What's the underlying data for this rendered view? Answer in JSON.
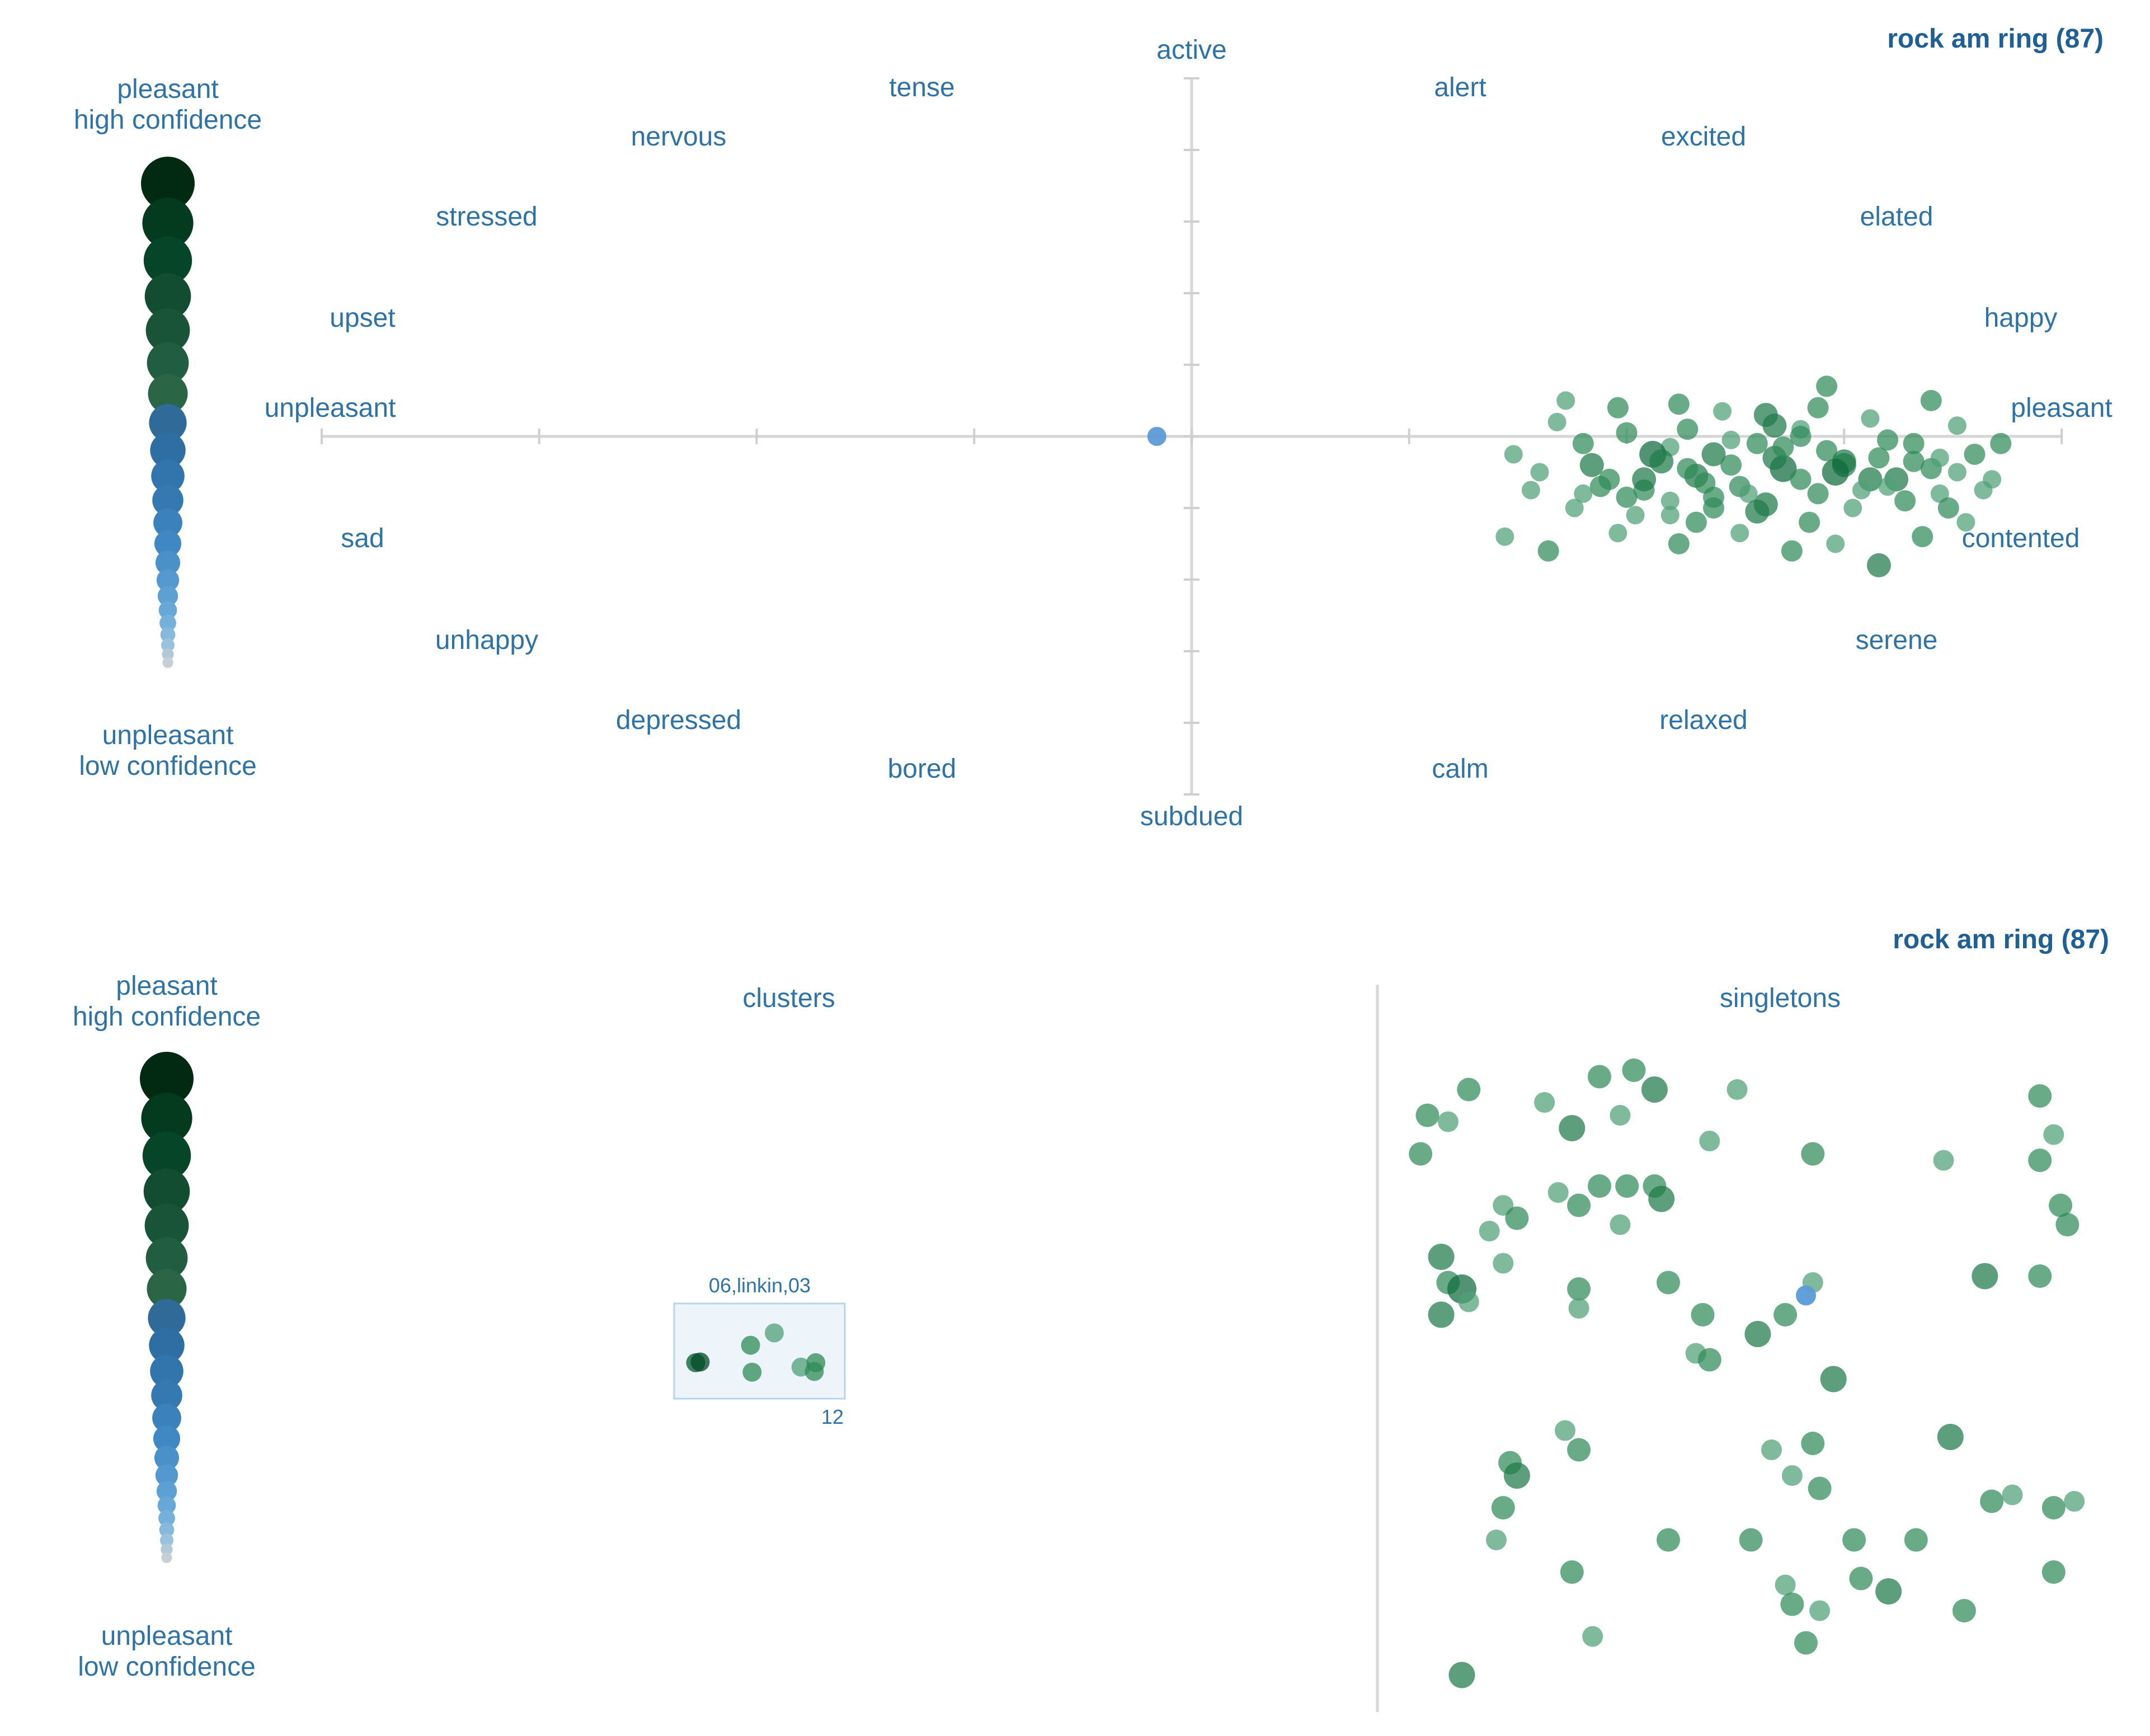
{
  "colors": {
    "label": "#2f73a6",
    "title": "#1f5f93",
    "axis": "#d6d6d6",
    "point": "#2e8b57",
    "highlight": "#5b9bd5",
    "cluster_box": "#eef5fa"
  },
  "legend": {
    "top_text": [
      "pleasant",
      "high confidence"
    ],
    "bottom_text": [
      "unpleasant",
      "low confidence"
    ],
    "swatches": [
      {
        "color": "#022a13",
        "size": 1.0
      },
      {
        "color": "#043a1e",
        "size": 0.95
      },
      {
        "color": "#074528",
        "size": 0.9
      },
      {
        "color": "#124d32",
        "size": 0.86
      },
      {
        "color": "#1a5438",
        "size": 0.82
      },
      {
        "color": "#215d40",
        "size": 0.78
      },
      {
        "color": "#2a6646",
        "size": 0.74
      },
      {
        "color": "#2f6a99",
        "size": 0.7
      },
      {
        "color": "#2f6ea3",
        "size": 0.66
      },
      {
        "color": "#3274ac",
        "size": 0.62
      },
      {
        "color": "#3579b2",
        "size": 0.58
      },
      {
        "color": "#3b82bd",
        "size": 0.54
      },
      {
        "color": "#4088c3",
        "size": 0.5
      },
      {
        "color": "#4a91ca",
        "size": 0.46
      },
      {
        "color": "#5399d0",
        "size": 0.42
      },
      {
        "color": "#5ca0d4",
        "size": 0.38
      },
      {
        "color": "#67a8d8",
        "size": 0.34
      },
      {
        "color": "#75b0db",
        "size": 0.31
      },
      {
        "color": "#86b9dc",
        "size": 0.28
      },
      {
        "color": "#9ac2dc",
        "size": 0.25
      },
      {
        "color": "#b2cad8",
        "size": 0.22
      },
      {
        "color": "#c5cfd5",
        "size": 0.2
      }
    ]
  },
  "chart_data": [
    {
      "type": "scatter",
      "title": "rock am ring (87)",
      "axes": {
        "x_neg": "unpleasant",
        "x_pos": "pleasant",
        "y_pos": "active",
        "y_neg": "subdued"
      },
      "mood_labels": [
        "tense",
        "nervous",
        "stressed",
        "upset",
        "alert",
        "excited",
        "elated",
        "happy",
        "sad",
        "unhappy",
        "depressed",
        "bored",
        "contented",
        "serene",
        "relaxed",
        "calm"
      ],
      "xlim": [
        -1,
        1
      ],
      "ylim": [
        -1,
        1
      ],
      "highlight_point": {
        "x": -0.04,
        "y": 0.0
      },
      "points": [
        {
          "x": 0.45,
          "y": -0.02,
          "c": 2
        },
        {
          "x": 0.5,
          "y": 0.01,
          "c": 2
        },
        {
          "x": 0.55,
          "y": -0.03,
          "c": 1
        },
        {
          "x": 0.6,
          "y": -0.05,
          "c": 3
        },
        {
          "x": 0.65,
          "y": -0.02,
          "c": 2
        },
        {
          "x": 0.7,
          "y": 0.02,
          "c": 1
        },
        {
          "x": 0.75,
          "y": -0.08,
          "c": 3
        },
        {
          "x": 0.8,
          "y": -0.01,
          "c": 2
        },
        {
          "x": 0.42,
          "y": 0.04,
          "c": 1
        },
        {
          "x": 0.48,
          "y": -0.12,
          "c": 2
        },
        {
          "x": 0.52,
          "y": -0.15,
          "c": 2
        },
        {
          "x": 0.58,
          "y": -0.11,
          "c": 3
        },
        {
          "x": 0.63,
          "y": -0.14,
          "c": 2
        },
        {
          "x": 0.68,
          "y": -0.09,
          "c": 4
        },
        {
          "x": 0.72,
          "y": -0.16,
          "c": 2
        },
        {
          "x": 0.78,
          "y": -0.12,
          "c": 3
        },
        {
          "x": 0.83,
          "y": -0.07,
          "c": 2
        },
        {
          "x": 0.88,
          "y": -0.1,
          "c": 1
        },
        {
          "x": 0.37,
          "y": -0.05,
          "c": 1
        },
        {
          "x": 0.4,
          "y": -0.1,
          "c": 1
        },
        {
          "x": 0.44,
          "y": -0.2,
          "c": 1
        },
        {
          "x": 0.5,
          "y": -0.17,
          "c": 2
        },
        {
          "x": 0.55,
          "y": -0.22,
          "c": 1
        },
        {
          "x": 0.6,
          "y": -0.2,
          "c": 2
        },
        {
          "x": 0.66,
          "y": -0.19,
          "c": 3
        },
        {
          "x": 0.71,
          "y": -0.24,
          "c": 2
        },
        {
          "x": 0.76,
          "y": -0.2,
          "c": 1
        },
        {
          "x": 0.82,
          "y": -0.18,
          "c": 2
        },
        {
          "x": 0.86,
          "y": -0.16,
          "c": 1
        },
        {
          "x": 0.9,
          "y": -0.05,
          "c": 2
        },
        {
          "x": 0.92,
          "y": -0.12,
          "c": 1
        },
        {
          "x": 0.46,
          "y": -0.08,
          "c": 3
        },
        {
          "x": 0.53,
          "y": -0.05,
          "c": 4
        },
        {
          "x": 0.57,
          "y": -0.09,
          "c": 2
        },
        {
          "x": 0.62,
          "y": -0.08,
          "c": 2
        },
        {
          "x": 0.67,
          "y": -0.06,
          "c": 3
        },
        {
          "x": 0.73,
          "y": -0.04,
          "c": 2
        },
        {
          "x": 0.77,
          "y": -0.15,
          "c": 1
        },
        {
          "x": 0.81,
          "y": -0.12,
          "c": 3
        },
        {
          "x": 0.85,
          "y": -0.09,
          "c": 2
        },
        {
          "x": 0.36,
          "y": -0.28,
          "c": 1
        },
        {
          "x": 0.41,
          "y": -0.32,
          "c": 2
        },
        {
          "x": 0.49,
          "y": -0.27,
          "c": 1
        },
        {
          "x": 0.56,
          "y": -0.3,
          "c": 2
        },
        {
          "x": 0.63,
          "y": -0.27,
          "c": 1
        },
        {
          "x": 0.69,
          "y": -0.32,
          "c": 2
        },
        {
          "x": 0.74,
          "y": -0.3,
          "c": 1
        },
        {
          "x": 0.79,
          "y": -0.36,
          "c": 3
        },
        {
          "x": 0.84,
          "y": -0.28,
          "c": 2
        },
        {
          "x": 0.89,
          "y": -0.24,
          "c": 1
        },
        {
          "x": 0.43,
          "y": 0.1,
          "c": 1
        },
        {
          "x": 0.49,
          "y": 0.08,
          "c": 2
        },
        {
          "x": 0.56,
          "y": 0.09,
          "c": 2
        },
        {
          "x": 0.61,
          "y": 0.07,
          "c": 1
        },
        {
          "x": 0.66,
          "y": 0.06,
          "c": 3
        },
        {
          "x": 0.72,
          "y": 0.08,
          "c": 2
        },
        {
          "x": 0.78,
          "y": 0.05,
          "c": 1
        },
        {
          "x": 0.85,
          "y": 0.1,
          "c": 2
        },
        {
          "x": 0.88,
          "y": 0.03,
          "c": 1
        },
        {
          "x": 0.93,
          "y": -0.02,
          "c": 2
        },
        {
          "x": 0.54,
          "y": -0.07,
          "c": 3
        },
        {
          "x": 0.59,
          "y": -0.13,
          "c": 2
        },
        {
          "x": 0.64,
          "y": -0.16,
          "c": 1
        },
        {
          "x": 0.7,
          "y": -0.12,
          "c": 2
        },
        {
          "x": 0.75,
          "y": -0.07,
          "c": 3
        },
        {
          "x": 0.8,
          "y": -0.14,
          "c": 1
        },
        {
          "x": 0.87,
          "y": -0.2,
          "c": 2
        },
        {
          "x": 0.91,
          "y": -0.15,
          "c": 1
        },
        {
          "x": 0.47,
          "y": -0.14,
          "c": 2
        },
        {
          "x": 0.51,
          "y": -0.22,
          "c": 1
        },
        {
          "x": 0.58,
          "y": -0.24,
          "c": 2
        },
        {
          "x": 0.65,
          "y": -0.21,
          "c": 3
        },
        {
          "x": 0.7,
          "y": 0.0,
          "c": 2
        },
        {
          "x": 0.74,
          "y": -0.1,
          "c": 4
        },
        {
          "x": 0.68,
          "y": -0.03,
          "c": 2
        },
        {
          "x": 0.62,
          "y": -0.01,
          "c": 1
        },
        {
          "x": 0.57,
          "y": 0.02,
          "c": 2
        },
        {
          "x": 0.52,
          "y": -0.12,
          "c": 3
        },
        {
          "x": 0.83,
          "y": -0.02,
          "c": 2
        },
        {
          "x": 0.86,
          "y": -0.06,
          "c": 1
        },
        {
          "x": 0.73,
          "y": 0.14,
          "c": 2
        },
        {
          "x": 0.67,
          "y": 0.03,
          "c": 3
        },
        {
          "x": 0.6,
          "y": -0.17,
          "c": 2
        },
        {
          "x": 0.55,
          "y": -0.18,
          "c": 1
        },
        {
          "x": 0.45,
          "y": -0.16,
          "c": 1
        },
        {
          "x": 0.39,
          "y": -0.15,
          "c": 1
        },
        {
          "x": 0.79,
          "y": -0.06,
          "c": 2
        }
      ]
    },
    {
      "type": "scatter",
      "title": "rock am ring (87)",
      "panels": [
        "clusters",
        "singletons"
      ],
      "cluster": {
        "label": "06,linkin,03",
        "count": "12",
        "points": [
          {
            "x": 0.44,
            "y": 0.42,
            "c": 2
          },
          {
            "x": 0.6,
            "y": 0.25,
            "c": 1
          },
          {
            "x": 0.07,
            "y": 0.66,
            "c": 5
          },
          {
            "x": 0.1,
            "y": 0.65,
            "c": 6
          },
          {
            "x": 0.45,
            "y": 0.79,
            "c": 2
          },
          {
            "x": 0.78,
            "y": 0.72,
            "c": 1
          },
          {
            "x": 0.88,
            "y": 0.66,
            "c": 2
          },
          {
            "x": 0.87,
            "y": 0.78,
            "c": 2
          }
        ]
      },
      "singletons": [
        {
          "x": 0.11,
          "y": 0.05,
          "c": 2
        },
        {
          "x": 0.22,
          "y": 0.07,
          "c": 1
        },
        {
          "x": 0.3,
          "y": 0.03,
          "c": 2
        },
        {
          "x": 0.35,
          "y": 0.02,
          "c": 2
        },
        {
          "x": 0.38,
          "y": 0.05,
          "c": 3
        },
        {
          "x": 0.5,
          "y": 0.05,
          "c": 1
        },
        {
          "x": 0.94,
          "y": 0.06,
          "c": 2
        },
        {
          "x": 0.05,
          "y": 0.09,
          "c": 2
        },
        {
          "x": 0.08,
          "y": 0.1,
          "c": 1
        },
        {
          "x": 0.26,
          "y": 0.11,
          "c": 3
        },
        {
          "x": 0.33,
          "y": 0.09,
          "c": 1
        },
        {
          "x": 0.46,
          "y": 0.13,
          "c": 1
        },
        {
          "x": 0.61,
          "y": 0.15,
          "c": 2
        },
        {
          "x": 0.96,
          "y": 0.12,
          "c": 1
        },
        {
          "x": 0.04,
          "y": 0.15,
          "c": 2
        },
        {
          "x": 0.24,
          "y": 0.21,
          "c": 1
        },
        {
          "x": 0.3,
          "y": 0.2,
          "c": 2
        },
        {
          "x": 0.34,
          "y": 0.2,
          "c": 2
        },
        {
          "x": 0.38,
          "y": 0.2,
          "c": 2
        },
        {
          "x": 0.39,
          "y": 0.22,
          "c": 3
        },
        {
          "x": 0.8,
          "y": 0.16,
          "c": 1
        },
        {
          "x": 0.94,
          "y": 0.16,
          "c": 2
        },
        {
          "x": 0.16,
          "y": 0.23,
          "c": 1
        },
        {
          "x": 0.18,
          "y": 0.25,
          "c": 2
        },
        {
          "x": 0.14,
          "y": 0.27,
          "c": 1
        },
        {
          "x": 0.27,
          "y": 0.23,
          "c": 2
        },
        {
          "x": 0.33,
          "y": 0.26,
          "c": 1
        },
        {
          "x": 0.97,
          "y": 0.23,
          "c": 2
        },
        {
          "x": 0.98,
          "y": 0.26,
          "c": 2
        },
        {
          "x": 0.07,
          "y": 0.31,
          "c": 3
        },
        {
          "x": 0.16,
          "y": 0.32,
          "c": 1
        },
        {
          "x": 0.08,
          "y": 0.35,
          "c": 2
        },
        {
          "x": 0.1,
          "y": 0.36,
          "c": 4
        },
        {
          "x": 0.11,
          "y": 0.38,
          "c": 1
        },
        {
          "x": 0.27,
          "y": 0.36,
          "c": 2
        },
        {
          "x": 0.4,
          "y": 0.35,
          "c": 2
        },
        {
          "x": 0.61,
          "y": 0.35,
          "c": 1
        },
        {
          "x": 0.86,
          "y": 0.34,
          "c": 3
        },
        {
          "x": 0.94,
          "y": 0.34,
          "c": 2
        },
        {
          "x": 0.07,
          "y": 0.4,
          "c": 3
        },
        {
          "x": 0.27,
          "y": 0.39,
          "c": 1
        },
        {
          "x": 0.45,
          "y": 0.4,
          "c": 2
        },
        {
          "x": 0.57,
          "y": 0.4,
          "c": 2
        },
        {
          "x": 0.53,
          "y": 0.43,
          "c": 3
        },
        {
          "x": 0.44,
          "y": 0.46,
          "c": 1
        },
        {
          "x": 0.46,
          "y": 0.47,
          "c": 2
        },
        {
          "x": 0.64,
          "y": 0.5,
          "c": 3
        },
        {
          "x": 0.25,
          "y": 0.58,
          "c": 1
        },
        {
          "x": 0.27,
          "y": 0.61,
          "c": 2
        },
        {
          "x": 0.55,
          "y": 0.61,
          "c": 1
        },
        {
          "x": 0.61,
          "y": 0.6,
          "c": 2
        },
        {
          "x": 0.81,
          "y": 0.59,
          "c": 3
        },
        {
          "x": 0.17,
          "y": 0.63,
          "c": 2
        },
        {
          "x": 0.18,
          "y": 0.65,
          "c": 3
        },
        {
          "x": 0.58,
          "y": 0.65,
          "c": 1
        },
        {
          "x": 0.62,
          "y": 0.67,
          "c": 2
        },
        {
          "x": 0.9,
          "y": 0.68,
          "c": 1
        },
        {
          "x": 0.87,
          "y": 0.69,
          "c": 2
        },
        {
          "x": 0.96,
          "y": 0.7,
          "c": 2
        },
        {
          "x": 0.99,
          "y": 0.69,
          "c": 1
        },
        {
          "x": 0.4,
          "y": 0.75,
          "c": 2
        },
        {
          "x": 0.52,
          "y": 0.75,
          "c": 2
        },
        {
          "x": 0.76,
          "y": 0.75,
          "c": 2
        },
        {
          "x": 0.26,
          "y": 0.8,
          "c": 2
        },
        {
          "x": 0.57,
          "y": 0.82,
          "c": 1
        },
        {
          "x": 0.68,
          "y": 0.81,
          "c": 2
        },
        {
          "x": 0.72,
          "y": 0.83,
          "c": 3
        },
        {
          "x": 0.58,
          "y": 0.85,
          "c": 2
        },
        {
          "x": 0.62,
          "y": 0.86,
          "c": 1
        },
        {
          "x": 0.83,
          "y": 0.86,
          "c": 2
        },
        {
          "x": 0.96,
          "y": 0.8,
          "c": 2
        },
        {
          "x": 0.29,
          "y": 0.9,
          "c": 1
        },
        {
          "x": 0.6,
          "y": 0.91,
          "c": 2
        },
        {
          "x": 0.1,
          "y": 0.96,
          "c": 3
        },
        {
          "x": 0.67,
          "y": 0.75,
          "c": 2
        },
        {
          "x": 0.15,
          "y": 0.75,
          "c": 1
        },
        {
          "x": 0.16,
          "y": 0.7,
          "c": 2
        }
      ],
      "highlight_point": {
        "x": 0.6,
        "y": 0.37
      }
    }
  ]
}
